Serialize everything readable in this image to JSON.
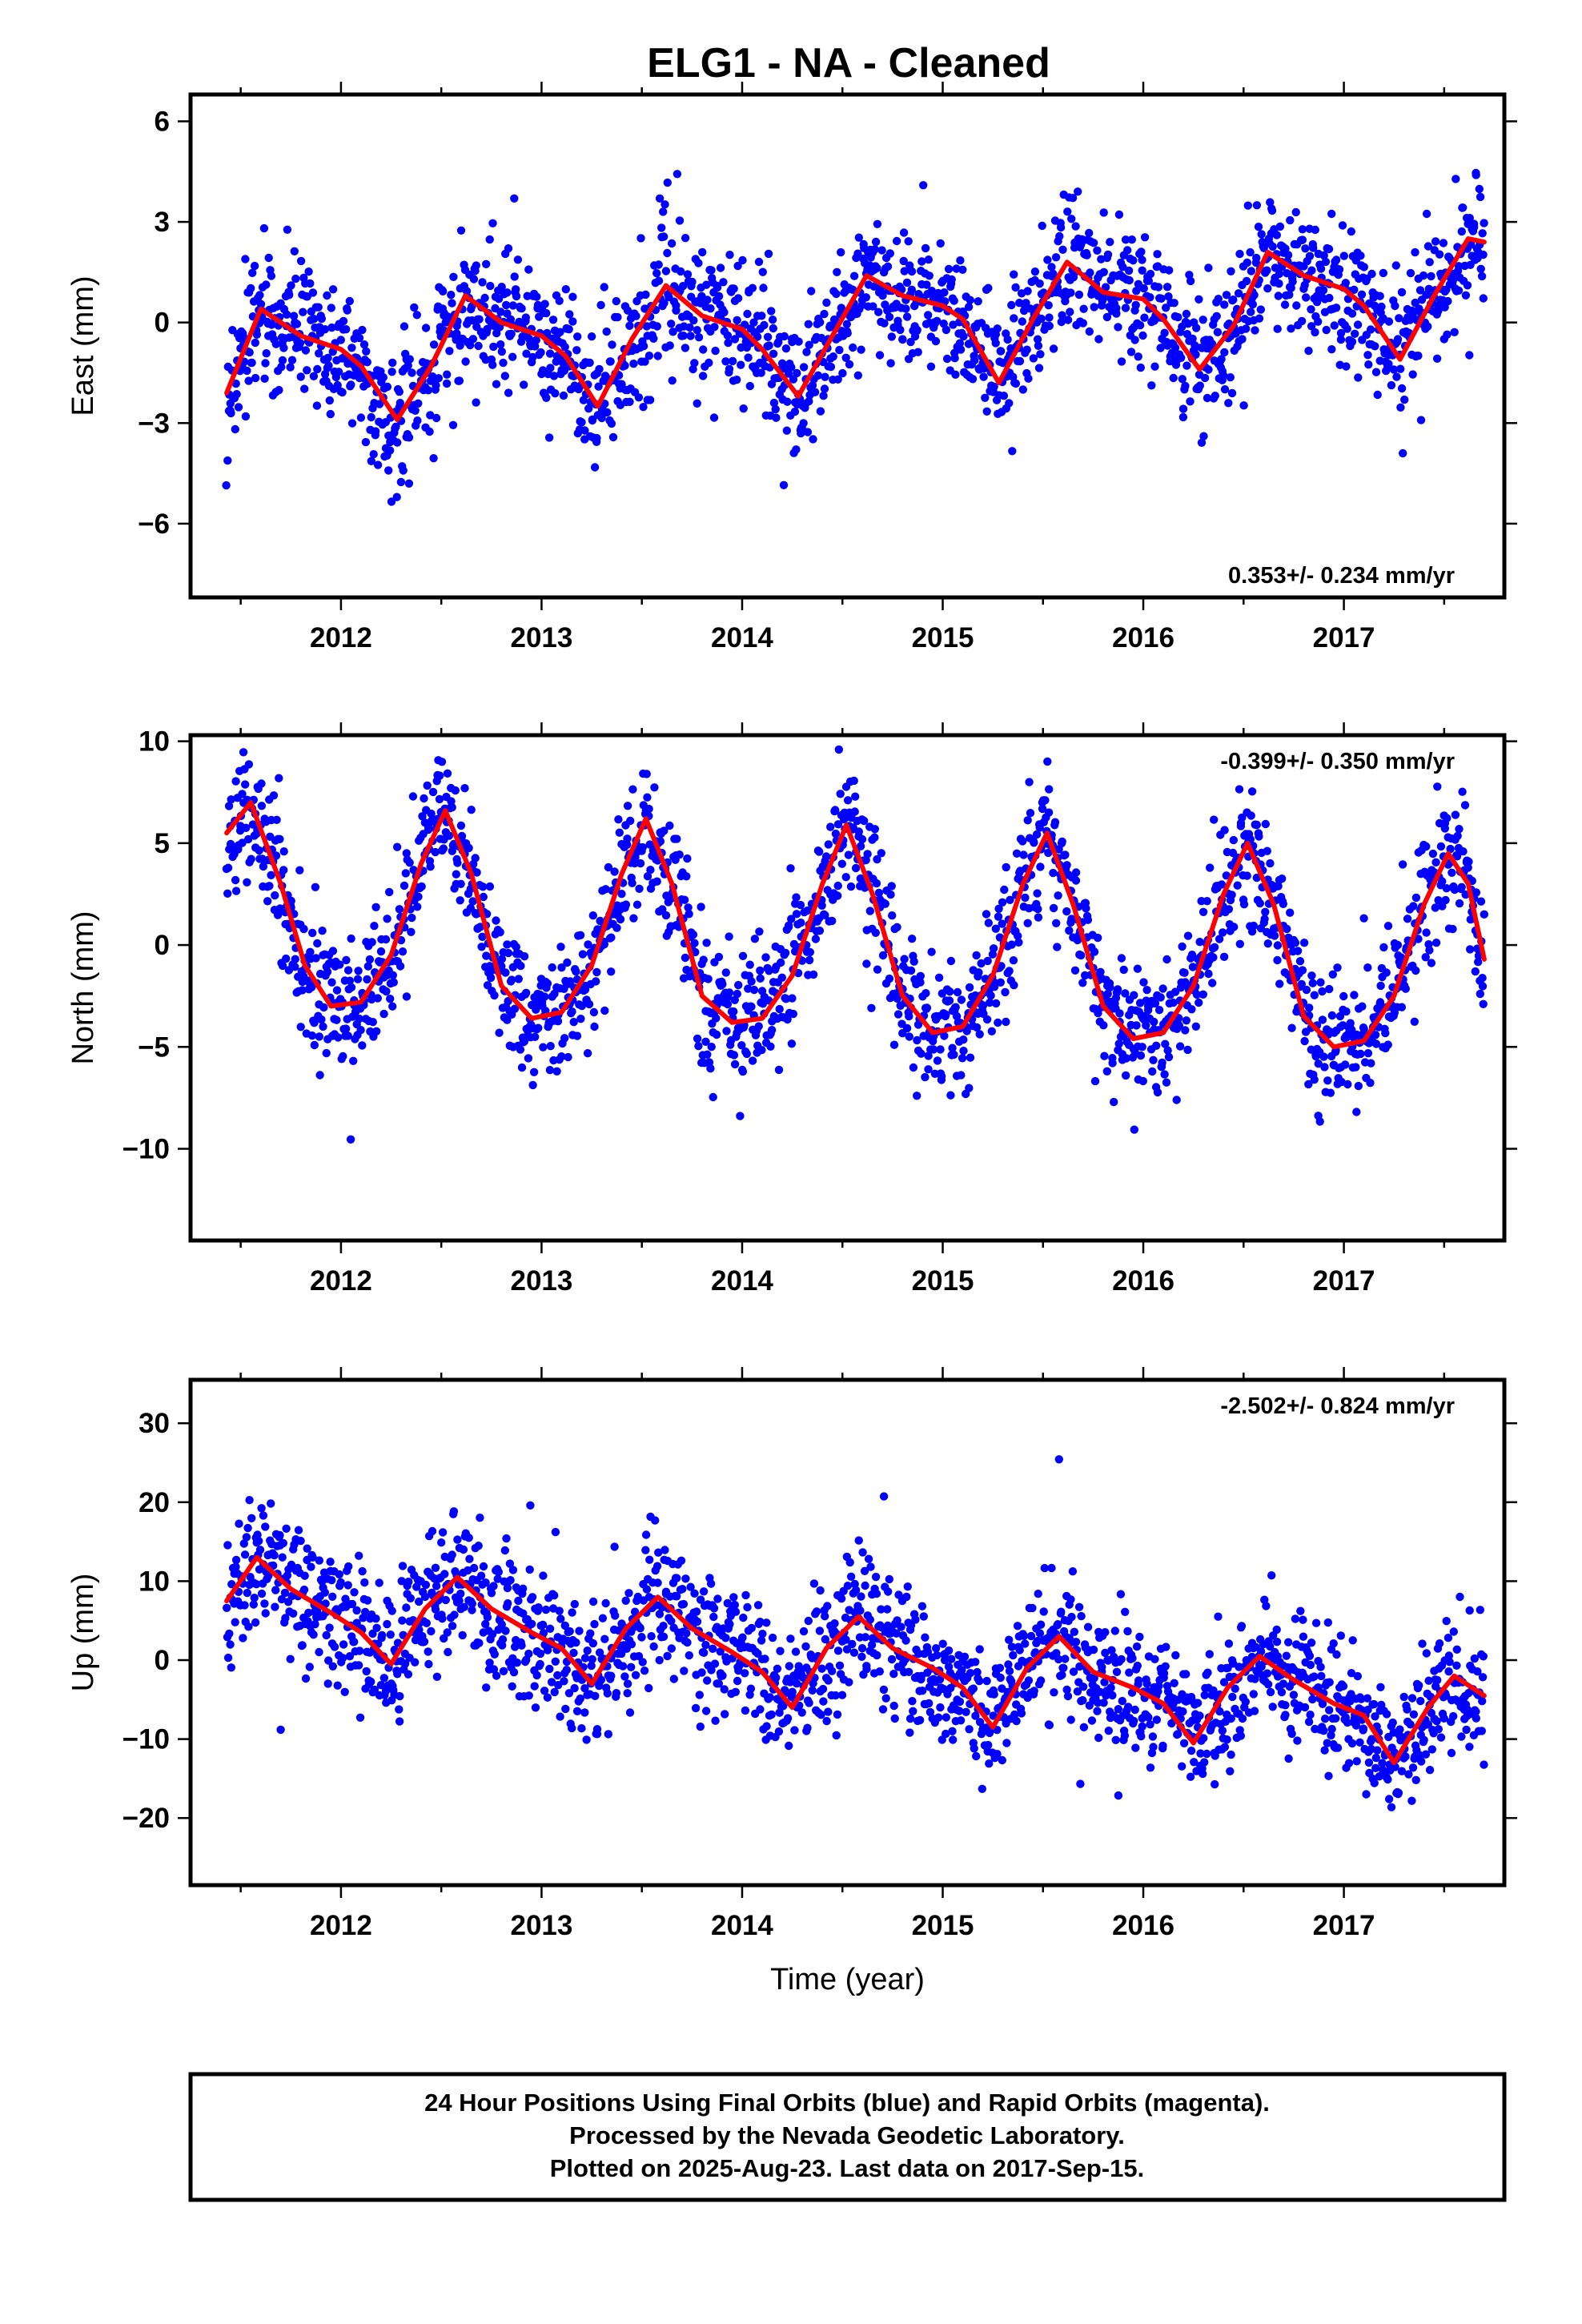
{
  "title": "ELG1  - NA - Cleaned",
  "colors": {
    "points": "#0000ff",
    "fit": "#ff0000",
    "axes": "#000000"
  },
  "footer": {
    "line1": "24 Hour Positions Using Final Orbits (blue) and Rapid Orbits (magenta).",
    "line2": "Processed by the Nevada Geodetic Laboratory.",
    "line3": "Plotted on 2025-Aug-23. Last data on 2017-Sep-15."
  },
  "chart_data": [
    {
      "type": "scatter",
      "component": "east",
      "ylabel": "East (mm)",
      "xlabel": "",
      "xlim": [
        2011.25,
        2017.8
      ],
      "ylim": [
        -8.2,
        6.8
      ],
      "yticks": [
        "6",
        "3",
        "0",
        "−3",
        "−6"
      ],
      "ytick_values": [
        6,
        3,
        0,
        -3,
        -6
      ],
      "xticks": [
        "2012",
        "2013",
        "2014",
        "2015",
        "2016",
        "2017"
      ],
      "xtick_values": [
        2012,
        2013,
        2014,
        2015,
        2016,
        2017
      ],
      "rate_text": "0.353+/- 0.234 mm/yr",
      "rate_position": "bottom-right",
      "series": [
        {
          "kind": "points",
          "x_start": 2011.43,
          "x_end": 2017.7,
          "scatter_sd": 1.0
        },
        {
          "kind": "fit-line",
          "x": [
            2011.43,
            2011.6,
            2011.8,
            2012.0,
            2012.1,
            2012.28,
            2012.45,
            2012.62,
            2012.8,
            2013.0,
            2013.12,
            2013.28,
            2013.45,
            2013.62,
            2013.8,
            2014.0,
            2014.1,
            2014.28,
            2014.45,
            2014.62,
            2014.8,
            2015.0,
            2015.1,
            2015.28,
            2015.45,
            2015.62,
            2015.8,
            2016.0,
            2016.1,
            2016.28,
            2016.45,
            2016.62,
            2016.8,
            2017.0,
            2017.1,
            2017.28,
            2017.45,
            2017.62,
            2017.7
          ],
          "y": [
            -2.1,
            0.4,
            -0.4,
            -0.8,
            -1.3,
            -2.9,
            -1.3,
            0.8,
            0.0,
            -0.4,
            -1.0,
            -2.5,
            -0.5,
            1.1,
            0.2,
            -0.2,
            -0.8,
            -2.2,
            -0.4,
            1.4,
            0.8,
            0.5,
            0.1,
            -1.8,
            0.1,
            1.8,
            0.9,
            0.7,
            0.1,
            -1.4,
            -0.1,
            2.1,
            1.4,
            1.0,
            0.5,
            -1.1,
            0.8,
            2.5,
            2.4
          ]
        }
      ]
    },
    {
      "type": "scatter",
      "component": "north",
      "ylabel": "North (mm)",
      "xlabel": "",
      "xlim": [
        2011.25,
        2017.8
      ],
      "ylim": [
        -14.5,
        10.3
      ],
      "yticks": [
        "10",
        "5",
        "0",
        "−5",
        "−10"
      ],
      "ytick_values": [
        10,
        5,
        0,
        -5,
        -10
      ],
      "xticks": [
        "2012",
        "2013",
        "2014",
        "2015",
        "2016",
        "2017"
      ],
      "xtick_values": [
        2012,
        2013,
        2014,
        2015,
        2016,
        2017
      ],
      "rate_text": "-0.399+/- 0.350 mm/yr",
      "rate_position": "top-right",
      "series": [
        {
          "kind": "points",
          "x_start": 2011.43,
          "x_end": 2017.7,
          "scatter_sd": 1.6
        },
        {
          "kind": "fit-line",
          "x": [
            2011.43,
            2011.55,
            2011.7,
            2011.82,
            2011.95,
            2012.1,
            2012.25,
            2012.4,
            2012.52,
            2012.65,
            2012.8,
            2012.95,
            2013.1,
            2013.25,
            2013.4,
            2013.52,
            2013.65,
            2013.8,
            2013.95,
            2014.1,
            2014.25,
            2014.4,
            2014.52,
            2014.65,
            2014.8,
            2014.95,
            2015.1,
            2015.25,
            2015.4,
            2015.52,
            2015.65,
            2015.8,
            2015.95,
            2016.1,
            2016.25,
            2016.4,
            2016.52,
            2016.65,
            2016.8,
            2016.95,
            2017.1,
            2017.25,
            2017.4,
            2017.52,
            2017.62,
            2017.7
          ],
          "y": [
            5.5,
            7.0,
            3.0,
            -1.0,
            -3.0,
            -2.8,
            -0.5,
            4.0,
            6.6,
            3.5,
            -2.0,
            -3.6,
            -3.3,
            -1.0,
            3.5,
            6.2,
            3.0,
            -2.5,
            -3.8,
            -3.6,
            -1.5,
            3.0,
            5.9,
            2.5,
            -2.5,
            -4.3,
            -4.0,
            -1.5,
            3.0,
            5.5,
            2.0,
            -3.0,
            -4.6,
            -4.3,
            -2.0,
            2.5,
            5.0,
            2.0,
            -3.5,
            -5.0,
            -4.7,
            -2.5,
            2.0,
            4.5,
            3.0,
            -0.7
          ]
        }
      ]
    },
    {
      "type": "scatter",
      "component": "up",
      "ylabel": "Up (mm)",
      "xlabel": "Time (year)",
      "xlim": [
        2011.25,
        2017.8
      ],
      "ylim": [
        -28.5,
        35.5
      ],
      "yticks": [
        "30",
        "20",
        "10",
        "0",
        "−10",
        "−20"
      ],
      "ytick_values": [
        30,
        20,
        10,
        0,
        -10,
        -20
      ],
      "xticks": [
        "2012",
        "2013",
        "2014",
        "2015",
        "2016",
        "2017"
      ],
      "xtick_values": [
        2012,
        2013,
        2014,
        2015,
        2016,
        2017
      ],
      "rate_text": "-2.502+/- 0.824 mm/yr",
      "rate_position": "top-right",
      "series": [
        {
          "kind": "points",
          "x_start": 2011.43,
          "x_end": 2017.7,
          "scatter_sd": 4.2
        },
        {
          "kind": "fit-line",
          "x": [
            2011.43,
            2011.58,
            2011.75,
            2011.95,
            2012.1,
            2012.25,
            2012.42,
            2012.58,
            2012.75,
            2012.95,
            2013.1,
            2013.25,
            2013.42,
            2013.58,
            2013.75,
            2013.95,
            2014.1,
            2014.25,
            2014.42,
            2014.58,
            2014.75,
            2014.95,
            2015.1,
            2015.25,
            2015.42,
            2015.58,
            2015.75,
            2015.95,
            2016.1,
            2016.25,
            2016.42,
            2016.58,
            2016.75,
            2016.95,
            2017.1,
            2017.25,
            2017.42,
            2017.55,
            2017.7
          ],
          "y": [
            7.5,
            13.0,
            9.0,
            6.0,
            3.5,
            -0.5,
            6.5,
            10.5,
            6.5,
            3.5,
            1.5,
            -3.0,
            4.0,
            8.0,
            4.0,
            1.0,
            -1.5,
            -6.0,
            1.5,
            5.5,
            1.5,
            -1.0,
            -3.5,
            -8.5,
            -1.0,
            3.0,
            -1.5,
            -3.5,
            -5.5,
            -10.5,
            -3.5,
            0.5,
            -2.5,
            -5.5,
            -7.0,
            -13.0,
            -6.0,
            -2.0,
            -4.5
          ]
        }
      ]
    }
  ]
}
